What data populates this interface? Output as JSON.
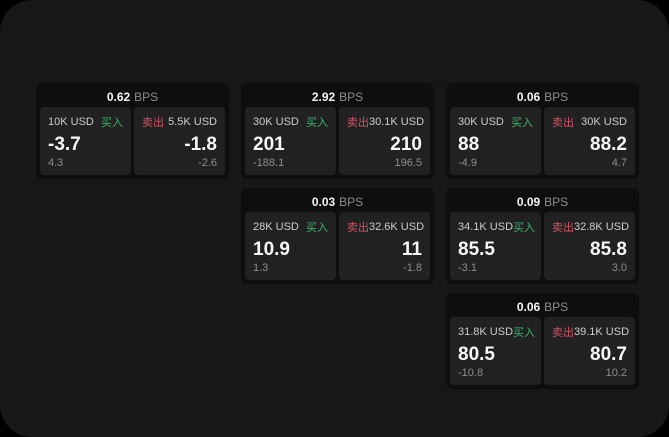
{
  "labels": {
    "unit": "BPS",
    "buy": "买入",
    "sell": "卖出"
  },
  "colors": {
    "outer_bg": "#000000",
    "surface_bg": "#171717",
    "card_bg": "#0e0e0e",
    "panel_bg": "#212121",
    "text_primary": "#f5f5f5",
    "text_secondary": "#cdcdcd",
    "text_muted": "#8d8d8d",
    "buy_green": "#3eb56f",
    "sell_rose": "#d25364"
  },
  "cards": [
    {
      "row": 1,
      "col": 1,
      "bps": "0.62",
      "buy": {
        "size": "10K USD",
        "price": "-3.7",
        "delta": "4.3"
      },
      "sell": {
        "size": "5.5K USD",
        "price": "-1.8",
        "delta": "-2.6"
      }
    },
    {
      "row": 1,
      "col": 2,
      "bps": "2.92",
      "buy": {
        "size": "30K USD",
        "price": "201",
        "delta": "-188.1"
      },
      "sell": {
        "size": "30.1K USD",
        "price": "210",
        "delta": "196.5"
      }
    },
    {
      "row": 1,
      "col": 3,
      "bps": "0.06",
      "buy": {
        "size": "30K USD",
        "price": "88",
        "delta": "-4.9"
      },
      "sell": {
        "size": "30K USD",
        "price": "88.2",
        "delta": "4.7"
      }
    },
    {
      "row": 2,
      "col": 2,
      "bps": "0.03",
      "buy": {
        "size": "28K USD",
        "price": "10.9",
        "delta": "1.3"
      },
      "sell": {
        "size": "32.6K USD",
        "price": "11",
        "delta": "-1.8"
      }
    },
    {
      "row": 2,
      "col": 3,
      "bps": "0.09",
      "buy": {
        "size": "34.1K USD",
        "price": "85.5",
        "delta": "-3.1"
      },
      "sell": {
        "size": "32.8K USD",
        "price": "85.8",
        "delta": "3.0"
      }
    },
    {
      "row": 3,
      "col": 3,
      "bps": "0.06",
      "buy": {
        "size": "31.8K USD",
        "price": "80.5",
        "delta": "-10.8"
      },
      "sell": {
        "size": "39.1K USD",
        "price": "80.7",
        "delta": "10.2"
      }
    }
  ]
}
